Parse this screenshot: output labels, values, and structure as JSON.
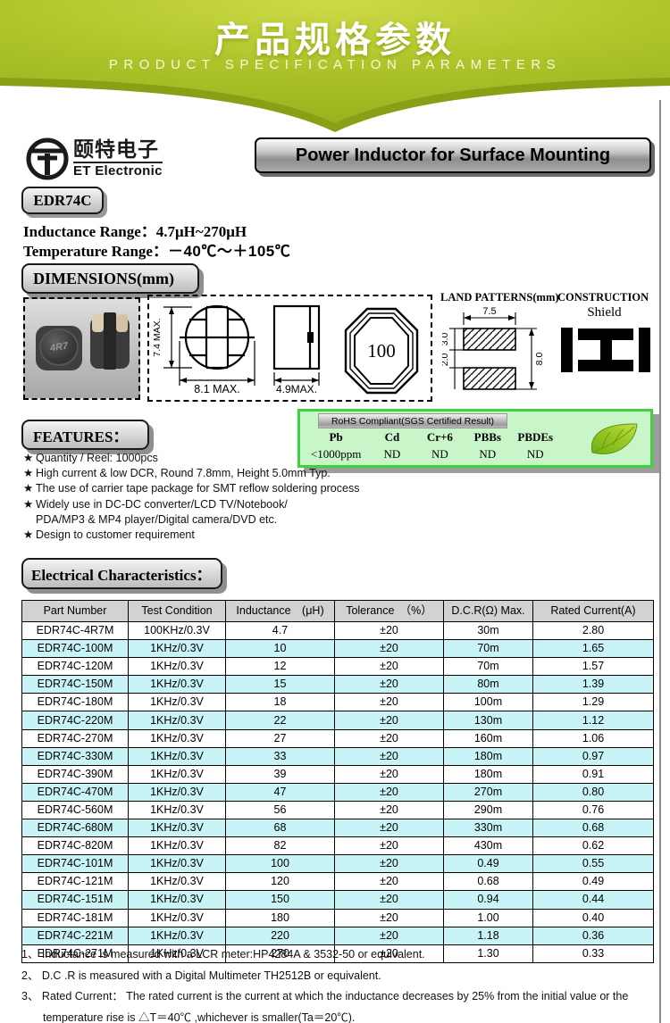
{
  "banner": {
    "title": "产品规格参数",
    "subtitle": "PRODUCT SPECIFICATION PARAMETERS",
    "color_light": "#b3c82c",
    "color_dark": "#87a015"
  },
  "brand": {
    "cn": "颐特电子",
    "en": "ET Electronic"
  },
  "product": {
    "series": "EDR74C",
    "heading": "Power Inductor for Surface Mounting",
    "inductance_label": "Inductance Range：",
    "inductance_value": "4.7μH~270μH",
    "temperature_label": "Temperature Range：",
    "temperature_value": "－40℃～＋105℃"
  },
  "dimensions": {
    "heading": "DIMENSIONS(mm)",
    "photo_marking": "4R7",
    "front_height": "7.4 MAX.",
    "front_width": "8.1 MAX.",
    "side_width": "4.9MAX.",
    "top_marking": "100"
  },
  "land_patterns": {
    "heading": "LAND PATTERNS(mm)",
    "pad_width": "7.5",
    "pad_height": "3.0",
    "pad_gap": "2.0",
    "overall_height": "8.0"
  },
  "construction": {
    "heading": "CONSTRUCTION",
    "shield_label": "Shield"
  },
  "rohs": {
    "header": "RoHS Compliant(SGS Certified Result)",
    "columns": [
      {
        "label": "Pb",
        "value": "<1000ppm"
      },
      {
        "label": "Cd",
        "value": "ND"
      },
      {
        "label": "Cr+6",
        "value": "ND"
      },
      {
        "label": "PBBs",
        "value": "ND"
      },
      {
        "label": "PBDEs",
        "value": "ND"
      }
    ]
  },
  "features": {
    "heading": "FEATURES：",
    "items": [
      {
        "star": true,
        "text": "Quantity / Reel: 1000pcs"
      },
      {
        "star": true,
        "text": "High current & low DCR, Round 7.8mm, Height 5.0mm Typ."
      },
      {
        "star": true,
        "text": "The use of carrier tape package for SMT reflow soldering process"
      },
      {
        "star": true,
        "text": "Widely use in DC-DC converter/LCD TV/Notebook/"
      },
      {
        "star": false,
        "text": "PDA/MP3 & MP4 player/Digital camera/DVD etc."
      },
      {
        "star": true,
        "text": "Design to customer requirement"
      }
    ]
  },
  "electrical": {
    "heading": "Electrical Characteristics：",
    "table": {
      "headers": [
        "Part Number",
        "Test Condition",
        "Inductance　(μH)",
        "Tolerance　（%）",
        "D.C.R(Ω) Max.",
        "Rated Current(A)"
      ],
      "rows": [
        [
          "EDR74C-4R7M",
          "100KHz/0.3V",
          "4.7",
          "±20",
          "30m",
          "2.80"
        ],
        [
          "EDR74C-100M",
          "1KHz/0.3V",
          "10",
          "±20",
          "70m",
          "1.65"
        ],
        [
          "EDR74C-120M",
          "1KHz/0.3V",
          "12",
          "±20",
          "70m",
          "1.57"
        ],
        [
          "EDR74C-150M",
          "1KHz/0.3V",
          "15",
          "±20",
          "80m",
          "1.39"
        ],
        [
          "EDR74C-180M",
          "1KHz/0.3V",
          "18",
          "±20",
          "100m",
          "1.29"
        ],
        [
          "EDR74C-220M",
          "1KHz/0.3V",
          "22",
          "±20",
          "130m",
          "1.12"
        ],
        [
          "EDR74C-270M",
          "1KHz/0.3V",
          "27",
          "±20",
          "160m",
          "1.06"
        ],
        [
          "EDR74C-330M",
          "1KHz/0.3V",
          "33",
          "±20",
          "180m",
          "0.97"
        ],
        [
          "EDR74C-390M",
          "1KHz/0.3V",
          "39",
          "±20",
          "180m",
          "0.91"
        ],
        [
          "EDR74C-470M",
          "1KHz/0.3V",
          "47",
          "±20",
          "270m",
          "0.80"
        ],
        [
          "EDR74C-560M",
          "1KHz/0.3V",
          "56",
          "±20",
          "290m",
          "0.76"
        ],
        [
          "EDR74C-680M",
          "1KHz/0.3V",
          "68",
          "±20",
          "330m",
          "0.68"
        ],
        [
          "EDR74C-820M",
          "1KHz/0.3V",
          "82",
          "±20",
          "430m",
          "0.62"
        ],
        [
          "EDR74C-101M",
          "1KHz/0.3V",
          "100",
          "±20",
          "0.49",
          "0.55"
        ],
        [
          "EDR74C-121M",
          "1KHz/0.3V",
          "120",
          "±20",
          "0.68",
          "0.49"
        ],
        [
          "EDR74C-151M",
          "1KHz/0.3V",
          "150",
          "±20",
          "0.94",
          "0.44"
        ],
        [
          "EDR74C-181M",
          "1KHz/0.3V",
          "180",
          "±20",
          "1.00",
          "0.40"
        ],
        [
          "EDR74C-221M",
          "1KHz/0.3V",
          "220",
          "±20",
          "1.18",
          "0.36"
        ],
        [
          "EDR74C-271M",
          "1KHz/0.3V",
          "270",
          "±20",
          "1.30",
          "0.33"
        ]
      ]
    }
  },
  "notes": [
    "1、 Inductance is measured with a LCR meter:HP4284A & 3532-50 or equivalent.",
    "2、 D.C .R is measured with a Digital Multimeter TH2512B or equivalent.",
    "3、 Rated Current：  The rated current is the current at which the inductance decreases by 25% from the initial value or the temperature rise is △T＝40℃ ,whichever is smaller(Ta＝20℃)."
  ]
}
